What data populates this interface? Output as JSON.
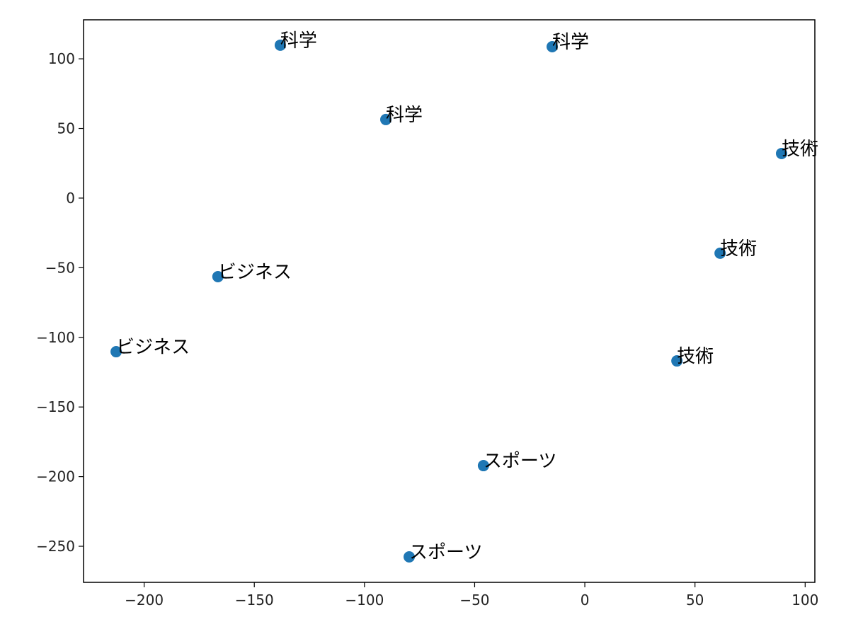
{
  "chart_data": {
    "type": "scatter",
    "x": [
      -138.2,
      -14.8,
      -90.3,
      89.3,
      61.4,
      41.8,
      -166.5,
      -212.7,
      -46.0,
      -79.7
    ],
    "y": [
      109.8,
      108.7,
      56.4,
      32.0,
      -39.6,
      -116.9,
      -56.4,
      -110.3,
      -192.1,
      -257.6
    ],
    "labels": [
      "科学",
      "科学",
      "科学",
      "技術",
      "技術",
      "技術",
      "ビジネス",
      "ビジネス",
      "スポーツ",
      "スポーツ"
    ],
    "color": "#1f77b4",
    "xlim": [
      -227.5,
      104.4
    ],
    "ylim": [
      -275.9,
      128.0
    ],
    "xticks": [
      {
        "value": -200,
        "label": "−200"
      },
      {
        "value": -150,
        "label": "−150"
      },
      {
        "value": -100,
        "label": "−100"
      },
      {
        "value": -50,
        "label": "−50"
      },
      0,
      50,
      100
    ],
    "yticks": [
      {
        "value": -250,
        "label": "−250"
      },
      {
        "value": -200,
        "label": "−200"
      },
      {
        "value": -150,
        "label": "−150"
      },
      {
        "value": -100,
        "label": "−100"
      },
      {
        "value": -50,
        "label": "−50"
      },
      0,
      50,
      100
    ]
  }
}
